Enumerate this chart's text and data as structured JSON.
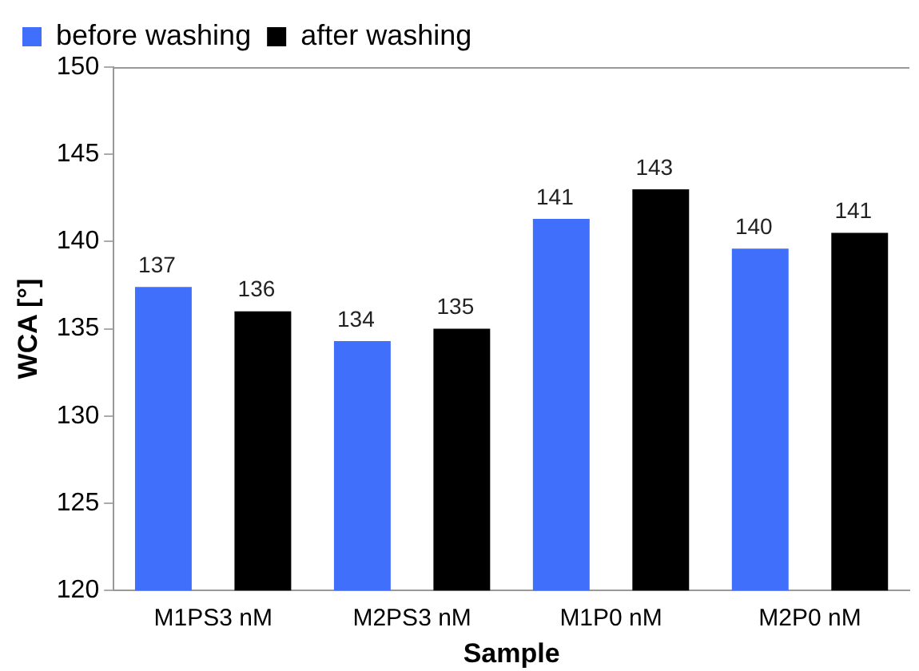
{
  "chart_data": {
    "type": "bar",
    "xlabel": "Sample",
    "ylabel": "WCA [°]",
    "categories": [
      "M1PS3 nM",
      "M2PS3 nM",
      "M1P0 nM",
      "M2P0 nM"
    ],
    "series": [
      {
        "name": "before washing",
        "color": "#3f6ffb",
        "values": [
          137.4,
          134.3,
          141.3,
          139.6
        ],
        "value_labels": [
          "137",
          "134",
          "141",
          "140"
        ]
      },
      {
        "name": "after washing",
        "color": "#000000",
        "values": [
          136.0,
          135.0,
          143.0,
          140.5
        ],
        "value_labels": [
          "136",
          "135",
          "143",
          "141"
        ]
      }
    ],
    "ylim": [
      120,
      150
    ],
    "yticks": [
      120,
      125,
      130,
      135,
      140,
      145,
      150
    ],
    "grid": false,
    "legend": "top left"
  }
}
